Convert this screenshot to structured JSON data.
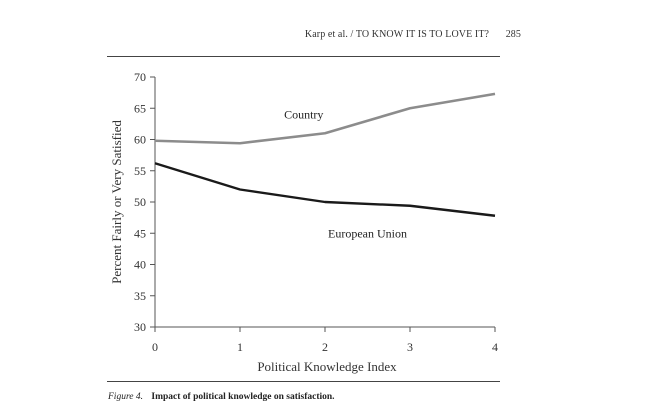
{
  "header": {
    "running_head": "Karp et al. / TO KNOW IT IS TO LOVE IT?",
    "page_number": "285"
  },
  "caption": {
    "label": "Figure 4.",
    "text": "Impact of political knowledge on satisfaction."
  },
  "chart_data": {
    "type": "line",
    "title": "",
    "xlabel": "Political Knowledge Index",
    "ylabel": "Percent Fairly or Very Satisfied",
    "x": [
      0,
      1,
      2,
      3,
      4
    ],
    "xticks": [
      "0",
      "1",
      "2",
      "3",
      "4"
    ],
    "yticks": [
      "30",
      "35",
      "40",
      "45",
      "50",
      "55",
      "60",
      "65",
      "70"
    ],
    "ylim": [
      30,
      70
    ],
    "xlim": [
      0,
      4
    ],
    "grid": false,
    "legend": "none",
    "series": [
      {
        "name": "Country",
        "values": [
          59.8,
          59.4,
          61.0,
          65.0,
          67.3
        ],
        "color": "#8c8c8c"
      },
      {
        "name": "European Union",
        "values": [
          56.2,
          52.0,
          50.0,
          49.4,
          47.8
        ],
        "color": "#1a1a1a"
      }
    ]
  }
}
